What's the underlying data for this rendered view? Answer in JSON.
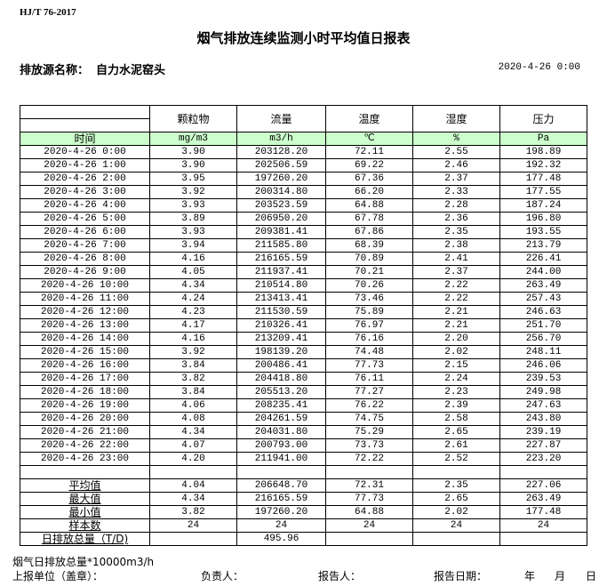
{
  "standard": "HJ/T  76-2017",
  "title": "烟气排放连续监测小时平均值日报表",
  "source_label": "排放源名称：",
  "source_name": "自力水泥窑头",
  "report_datetime": "2020-4-26 0:00",
  "columns": [
    "颗粒物",
    "流量",
    "温度",
    "湿度",
    "压力"
  ],
  "time_header": "时间",
  "units": [
    "mg/m3",
    "m3/h",
    "℃",
    "%",
    "Pa"
  ],
  "header_color": "#ccffcc",
  "rows": [
    [
      "2020-4-26 0:00",
      "3.90",
      "203128.20",
      "72.11",
      "2.55",
      "198.89"
    ],
    [
      "2020-4-26 1:00",
      "3.90",
      "202506.59",
      "69.22",
      "2.46",
      "192.32"
    ],
    [
      "2020-4-26 2:00",
      "3.95",
      "197260.20",
      "67.36",
      "2.37",
      "177.48"
    ],
    [
      "2020-4-26 3:00",
      "3.92",
      "200314.80",
      "66.20",
      "2.33",
      "177.55"
    ],
    [
      "2020-4-26 4:00",
      "3.93",
      "203523.59",
      "64.88",
      "2.28",
      "187.24"
    ],
    [
      "2020-4-26 5:00",
      "3.89",
      "206950.20",
      "67.78",
      "2.36",
      "196.80"
    ],
    [
      "2020-4-26 6:00",
      "3.93",
      "209381.41",
      "67.86",
      "2.35",
      "193.55"
    ],
    [
      "2020-4-26 7:00",
      "3.94",
      "211585.80",
      "68.39",
      "2.38",
      "213.79"
    ],
    [
      "2020-4-26 8:00",
      "4.16",
      "216165.59",
      "70.89",
      "2.41",
      "226.41"
    ],
    [
      "2020-4-26 9:00",
      "4.05",
      "211937.41",
      "70.21",
      "2.37",
      "244.00"
    ],
    [
      "2020-4-26 10:00",
      "4.34",
      "210514.80",
      "70.26",
      "2.22",
      "263.49"
    ],
    [
      "2020-4-26 11:00",
      "4.24",
      "213413.41",
      "73.46",
      "2.22",
      "257.43"
    ],
    [
      "2020-4-26 12:00",
      "4.23",
      "211530.59",
      "75.89",
      "2.21",
      "246.63"
    ],
    [
      "2020-4-26 13:00",
      "4.17",
      "210326.41",
      "76.97",
      "2.21",
      "251.70"
    ],
    [
      "2020-4-26 14:00",
      "4.16",
      "213209.41",
      "76.16",
      "2.20",
      "256.70"
    ],
    [
      "2020-4-26 15:00",
      "3.92",
      "198139.20",
      "74.48",
      "2.02",
      "248.11"
    ],
    [
      "2020-4-26 16:00",
      "3.84",
      "200486.41",
      "77.73",
      "2.15",
      "246.06"
    ],
    [
      "2020-4-26 17:00",
      "3.82",
      "204418.80",
      "76.11",
      "2.24",
      "239.53"
    ],
    [
      "2020-4-26 18:00",
      "3.84",
      "205513.20",
      "77.27",
      "2.23",
      "249.98"
    ],
    [
      "2020-4-26 19:00",
      "4.06",
      "208235.41",
      "76.22",
      "2.39",
      "247.63"
    ],
    [
      "2020-4-26 20:00",
      "4.08",
      "204261.59",
      "74.75",
      "2.58",
      "243.80"
    ],
    [
      "2020-4-26 21:00",
      "4.34",
      "204031.80",
      "75.29",
      "2.65",
      "239.19"
    ],
    [
      "2020-4-26 22:00",
      "4.07",
      "200793.00",
      "73.73",
      "2.61",
      "227.87"
    ],
    [
      "2020-4-26 23:00",
      "4.20",
      "211941.00",
      "72.22",
      "2.52",
      "223.20"
    ]
  ],
  "stats": [
    [
      "平均值",
      "4.04",
      "206648.70",
      "72.31",
      "2.35",
      "227.06"
    ],
    [
      "最大值",
      "4.34",
      "216165.59",
      "77.73",
      "2.65",
      "263.49"
    ],
    [
      "最小值",
      "3.82",
      "197260.20",
      "64.88",
      "2.02",
      "177.48"
    ],
    [
      "样本数",
      "24",
      "24",
      "24",
      "24",
      "24"
    ],
    [
      "日排放总量（T/D)",
      "",
      "495.96",
      "",
      "",
      ""
    ]
  ],
  "footer": {
    "note": "烟气日排放总量*10000m3/h",
    "unit_label": "上报单位（盖章）：",
    "responsible_label": "负责人：",
    "reporter_label": "报告人：",
    "report_date_label": "报告日期：",
    "year": "年",
    "month": "月",
    "day": "日"
  }
}
